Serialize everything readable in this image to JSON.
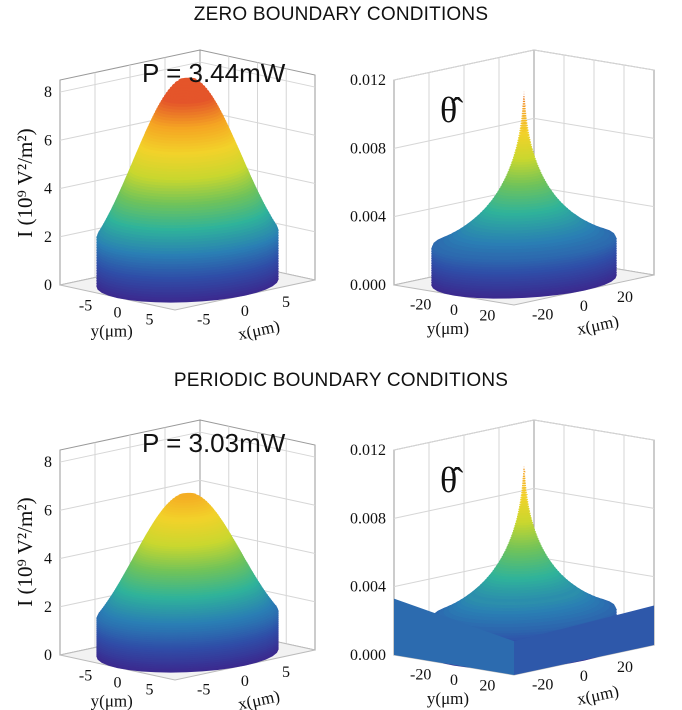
{
  "titles": {
    "zero": "ZERO BOUNDARY CONDITIONS",
    "periodic": "PERIODIC BOUNDARY CONDITIONS"
  },
  "intensity_axis_label": "I (10⁹ V²/m²)",
  "colors": {
    "colormap": [
      "#3b2a8f",
      "#2f4ea8",
      "#2a7fb4",
      "#2fb39a",
      "#70c35a",
      "#c9d72f",
      "#f2d22a",
      "#f5a623",
      "#e4552a"
    ],
    "grid": "#d6d6d6"
  },
  "chart_data": [
    {
      "type": "surface",
      "panel": "zero-intensity",
      "annotation": "P = 3.44mW",
      "zlabel": "I (10⁹ V²/m²)",
      "zlim": [
        0,
        8.5
      ],
      "zticks": [
        "0",
        "2",
        "4",
        "6",
        "8"
      ],
      "y_ticks": [
        "-5",
        "0",
        "5"
      ],
      "x_ticks": [
        "-5",
        "0",
        "5"
      ],
      "ylabel": "y(μm)",
      "xlabel": "x(μm)",
      "peak": 8.5,
      "shape": "gaussian",
      "width_um": 2.2
    },
    {
      "type": "surface",
      "panel": "zero-theta",
      "annotation": "θ̂",
      "zlim": [
        0,
        0.012
      ],
      "zticks": [
        "0.000",
        "0.004",
        "0.008",
        "0.012"
      ],
      "y_ticks": [
        "-20",
        "0",
        "20"
      ],
      "x_ticks": [
        "-20",
        "0",
        "20"
      ],
      "ylabel": "y(μm)",
      "xlabel": "x(μm)",
      "peak": 0.0113,
      "shape": "cusp",
      "width_um": 9
    },
    {
      "type": "surface",
      "panel": "periodic-intensity",
      "annotation": "P = 3.03mW",
      "zlabel": "I (10⁹ V²/m²)",
      "zlim": [
        0,
        8.5
      ],
      "zticks": [
        "0",
        "2",
        "4",
        "6",
        "8"
      ],
      "y_ticks": [
        "-5",
        "0",
        "5"
      ],
      "x_ticks": [
        "-5",
        "0",
        "5"
      ],
      "ylabel": "y(μm)",
      "xlabel": "x(μm)",
      "peak": 6.6,
      "shape": "gaussian",
      "width_um": 2.4
    },
    {
      "type": "surface",
      "panel": "periodic-theta",
      "annotation": "θ̂",
      "zlim": [
        0,
        0.012
      ],
      "zticks": [
        "0.000",
        "0.004",
        "0.008",
        "0.012"
      ],
      "y_ticks": [
        "-20",
        "0",
        "20"
      ],
      "x_ticks": [
        "-20",
        "0",
        "20"
      ],
      "ylabel": "y(μm)",
      "xlabel": "x(μm)",
      "peak": 0.011,
      "base": 0.0033,
      "shape": "cusp-periodic",
      "width_um": 9
    }
  ]
}
